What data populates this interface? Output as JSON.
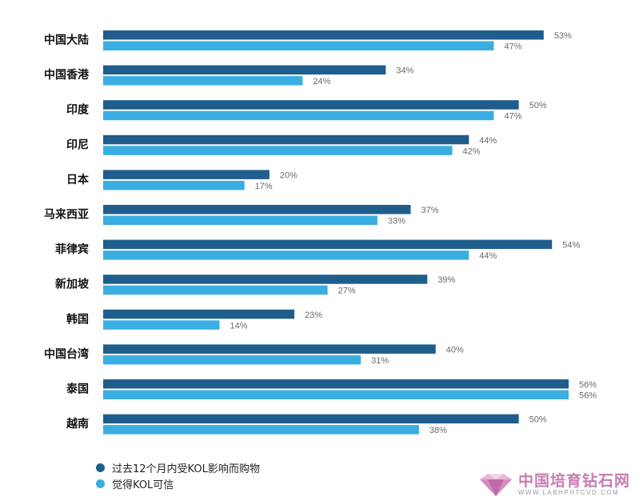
{
  "chart_data": {
    "type": "bar",
    "orientation": "horizontal",
    "categories": [
      "中国大陆",
      "中国香港",
      "印度",
      "印尼",
      "日本",
      "马来西亚",
      "菲律宾",
      "新加坡",
      "韩国",
      "中国台湾",
      "泰国",
      "越南"
    ],
    "series": [
      {
        "name": "过去12个月内受KOL影响而购物",
        "color": "#1f5d8c",
        "values": [
          53,
          34,
          50,
          44,
          20,
          37,
          54,
          39,
          23,
          40,
          56,
          50
        ],
        "labels": [
          "53%",
          "34%",
          "50%",
          "44%",
          "20%",
          "37%",
          "54%",
          "39%",
          "23%",
          "40%",
          "56%",
          "50%"
        ]
      },
      {
        "name": "觉得KOL可信",
        "color": "#3aaee0",
        "values": [
          47,
          24,
          47,
          42,
          17,
          33,
          44,
          27,
          14,
          31,
          56,
          38
        ],
        "labels": [
          "47%",
          "24%",
          "47%",
          "42%",
          "17%",
          "33%",
          "44%",
          "27%",
          "14%",
          "31%",
          "56%",
          "38%"
        ]
      }
    ],
    "unit": "%",
    "xlim": [
      0,
      56
    ],
    "grid": false,
    "legend_position": "bottom-left"
  },
  "watermark": {
    "title": "中国培育钻石网",
    "url": "WWW.LABHPHTCVD.COM",
    "icon": "diamond-logo-icon"
  }
}
